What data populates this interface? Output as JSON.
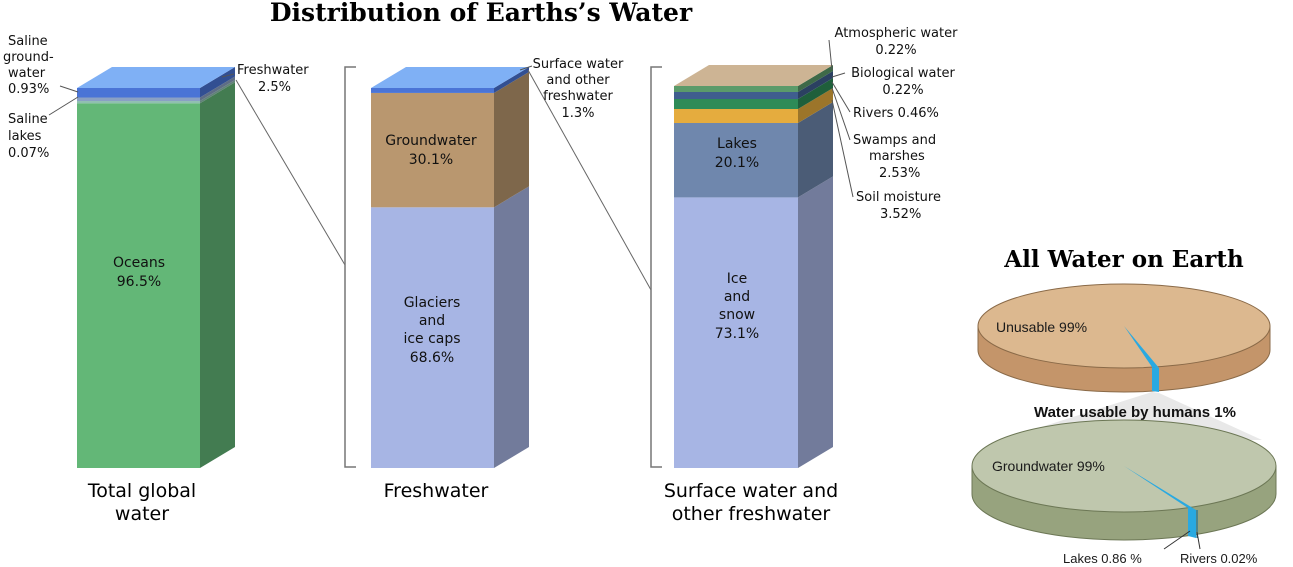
{
  "title": "Distribution of Earths’s Water",
  "chart_data": [
    {
      "type": "bar",
      "category": "Total global water",
      "segments": [
        {
          "name": "Oceans",
          "percent": 96.5,
          "color": "#63b777"
        },
        {
          "name": "Saline lakes",
          "percent": 0.07,
          "color": "#8fbfb0"
        },
        {
          "name": "Saline groundwater",
          "percent": 0.93,
          "color": "#8aa0c4"
        },
        {
          "name": "Freshwater",
          "percent": 2.5,
          "color": "#4a74d6"
        }
      ]
    },
    {
      "type": "bar",
      "category": "Freshwater",
      "segments": [
        {
          "name": "Glaciers and ice caps",
          "percent": 68.6,
          "color": "#a7b5e4"
        },
        {
          "name": "Groundwater",
          "percent": 30.1,
          "color": "#b9976f"
        },
        {
          "name": "Surface water and other freshwater",
          "percent": 1.3,
          "color": "#4a74d6"
        }
      ]
    },
    {
      "type": "bar",
      "category": "Surface water and other freshwater",
      "segments": [
        {
          "name": "Ice and snow",
          "percent": 73.1,
          "color": "#a7b5e4"
        },
        {
          "name": "Lakes",
          "percent": 20.1,
          "color": "#6f87ad"
        },
        {
          "name": "Soil moisture",
          "percent": 3.52,
          "color": "#e5ac3e"
        },
        {
          "name": "Swamps and marshes",
          "percent": 2.53,
          "color": "#2e8b57"
        },
        {
          "name": "Rivers",
          "percent": 0.46,
          "color": "#3f5e8e"
        },
        {
          "name": "Biological water",
          "percent": 0.22,
          "color": "#5b9b6a"
        },
        {
          "name": "Atmospheric water",
          "percent": 0.22,
          "color": "#cdb494"
        }
      ]
    },
    {
      "type": "pie",
      "title": "All Water on Earth",
      "slices": [
        {
          "label": "Unusable 99%",
          "percent": 99
        },
        {
          "label": "Water usable by humans 1%",
          "percent": 1
        }
      ],
      "colors": {
        "top": "#dcb88f",
        "side": "#c4956a",
        "slice": "#29a9e1"
      }
    },
    {
      "type": "pie",
      "slices": [
        {
          "label": "Groundwater 99%",
          "percent": 99
        },
        {
          "label": "Lakes 0.86 %",
          "percent": 0.86
        },
        {
          "label": "Rivers 0.02%",
          "percent": 0.02
        }
      ],
      "colors": {
        "top": "#bfc7ad",
        "side": "#97a37e",
        "slice": "#29a9e1"
      }
    }
  ],
  "labels": {
    "bar1_inside": [
      "Oceans",
      "96.5%"
    ],
    "bar1_freshwater": [
      "Freshwater",
      "2.5%"
    ],
    "bar1_saline_gw": [
      "Saline",
      "ground-",
      "water",
      "0.93%"
    ],
    "bar1_saline_lakes": [
      "Saline",
      "lakes",
      "0.07%"
    ],
    "bar1_caption": [
      "Total global",
      "water"
    ],
    "bar2_ground": [
      "Groundwater",
      "30.1%"
    ],
    "bar2_glaciers": [
      "Glaciers",
      "and",
      "ice caps",
      "68.6%"
    ],
    "bar2_surface": [
      "Surface water",
      "and other",
      "freshwater",
      "1.3%"
    ],
    "bar2_caption": [
      "Freshwater"
    ],
    "bar3_lakes": [
      "Lakes",
      "20.1%"
    ],
    "bar3_ice": [
      "Ice",
      "and",
      "snow",
      "73.1%"
    ],
    "bar3_atmo": [
      "Atmospheric water",
      "0.22%"
    ],
    "bar3_bio": [
      "Biological water",
      "0.22%"
    ],
    "bar3_rivers": [
      "Rivers  0.46%"
    ],
    "bar3_swamps": [
      "Swamps and",
      "marshes",
      "2.53%"
    ],
    "bar3_soil": [
      "Soil moisture",
      "3.52%"
    ],
    "bar3_caption": [
      "Surface water and",
      "other freshwater"
    ],
    "pie_title": "All Water on Earth",
    "pie1_label": "Unusable 99%",
    "usable_label": "Water usable by humans 1%",
    "pie2_label": "Groundwater 99%",
    "lakes_label": "Lakes 0.86 %",
    "rivers_label": "Rivers 0.02%"
  }
}
